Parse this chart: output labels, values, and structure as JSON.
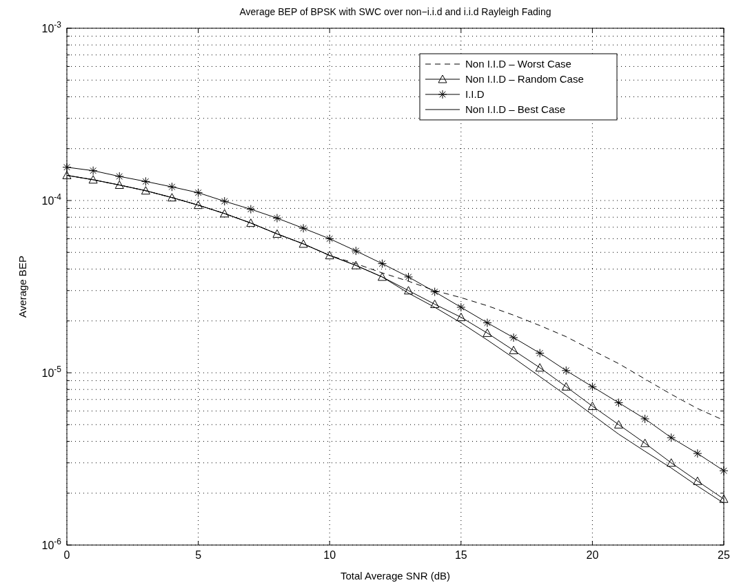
{
  "chart_data": {
    "type": "line",
    "title": "Average BEP of BPSK with SWC over non−i.i.d and i.i.d Rayleigh Fading",
    "xlabel": "Total Average SNR (dB)",
    "ylabel": "Average BEP",
    "log": "y",
    "grid": true,
    "legend": "top right",
    "x": [
      0,
      1,
      2,
      3,
      4,
      5,
      6,
      7,
      8,
      9,
      10,
      11,
      12,
      13,
      14,
      15,
      16,
      17,
      18,
      19,
      20,
      21,
      22,
      23,
      24,
      25
    ],
    "xlim": [
      0,
      25
    ],
    "xticks": [
      0,
      5,
      10,
      15,
      20,
      25
    ],
    "ylim": [
      1e-06,
      0.001
    ],
    "yticks": [
      {
        "value": 1e-06,
        "label": "10$^{-6}$"
      },
      {
        "value": 1e-05,
        "label": "10$^{-5}$"
      },
      {
        "value": 0.0001,
        "label": "10$^{-4}$"
      },
      {
        "value": 0.001,
        "label": "10$^{-3}$"
      }
    ],
    "series": [
      {
        "name": "Non I.I.D – Worst Case",
        "color": "#000000",
        "marker": "none",
        "line_style": "dashed",
        "values": [
          0.00014,
          0.000132,
          0.000123,
          0.000114,
          0.000104,
          9.4e-05,
          8.4e-05,
          7.4e-05,
          6.4e-05,
          5.6e-05,
          4.8e-05,
          4.3e-05,
          3.8e-05,
          3.4e-05,
          3e-05,
          2.73e-05,
          2.45e-05,
          2.16e-05,
          1.88e-05,
          1.62e-05,
          1.35e-05,
          1.13e-05,
          9.2e-06,
          7.5e-06,
          6.2e-06,
          5.3e-06
        ]
      },
      {
        "name": "Non I.I.D – Random Case",
        "color": "#000000",
        "marker": "triangle",
        "line_style": "solid",
        "values": [
          0.00014,
          0.000132,
          0.000123,
          0.000114,
          0.000104,
          9.4e-05,
          8.4e-05,
          7.4e-05,
          6.4e-05,
          5.6e-05,
          4.8e-05,
          4.2e-05,
          3.6e-05,
          3e-05,
          2.5e-05,
          2.1e-05,
          1.7e-05,
          1.35e-05,
          1.07e-05,
          8.3e-06,
          6.4e-06,
          5e-06,
          3.9e-06,
          3e-06,
          2.35e-06,
          1.85e-06
        ]
      },
      {
        "name": "I.I.D",
        "color": "#000000",
        "marker": "cross",
        "line_style": "solid",
        "values": [
          0.000156,
          0.000149,
          0.000138,
          0.000129,
          0.00012,
          0.000111,
          9.9e-05,
          8.9e-05,
          7.9e-05,
          6.9e-05,
          6e-05,
          5.1e-05,
          4.3e-05,
          3.6e-05,
          2.95e-05,
          2.4e-05,
          1.95e-05,
          1.6e-05,
          1.3e-05,
          1.03e-05,
          8.3e-06,
          6.7e-06,
          5.4e-06,
          4.2e-06,
          3.4e-06,
          2.7e-06
        ]
      },
      {
        "name": "Non I.I.D – Best Case",
        "color": "#000000",
        "marker": "none",
        "line_style": "solid",
        "values": [
          0.00014,
          0.000132,
          0.000123,
          0.000114,
          0.000104,
          9.4e-05,
          8.4e-05,
          7.4e-05,
          6.4e-05,
          5.6e-05,
          4.8e-05,
          4.2e-05,
          3.6e-05,
          2.9e-05,
          2.4e-05,
          1.95e-05,
          1.55e-05,
          1.22e-05,
          9.5e-06,
          7.4e-06,
          5.7e-06,
          4.4e-06,
          3.5e-06,
          2.8e-06,
          2.2e-06,
          1.75e-06
        ]
      }
    ]
  }
}
